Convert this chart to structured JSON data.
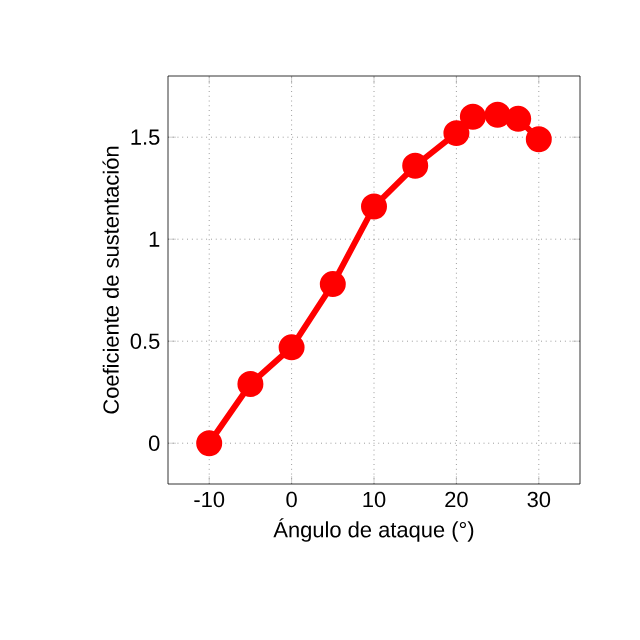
{
  "chart_data": {
    "type": "line",
    "xlabel": "Ángulo de ataque (°)",
    "ylabel": "Coeficiente de sustentación",
    "x": [
      -10,
      -5,
      0,
      5,
      10,
      15,
      20,
      22,
      25,
      27.5,
      30
    ],
    "series": [
      {
        "color": "#ff0000",
        "values": [
          0,
          0.29,
          0.47,
          0.78,
          1.16,
          1.36,
          1.52,
          1.6,
          1.61,
          1.59,
          1.49
        ]
      }
    ],
    "xlim": [
      -15,
      35
    ],
    "ylim": [
      -0.2,
      1.8
    ],
    "xticks": [
      -10,
      0,
      10,
      20,
      30
    ],
    "yticks": [
      0,
      0.5,
      1,
      1.5
    ],
    "grid": true,
    "marker": "circle",
    "line_style": "solid"
  }
}
